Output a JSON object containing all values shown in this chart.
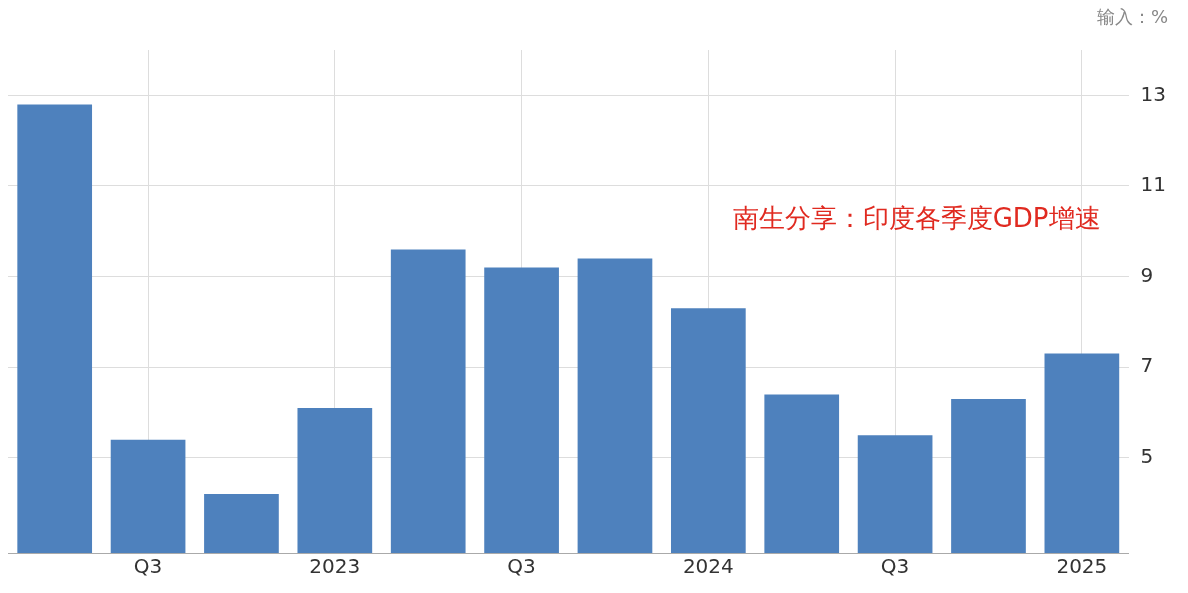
{
  "chart_data": {
    "type": "bar",
    "ylabel": "输入：%",
    "annotations": [
      "南生分享：印度各季度GDP增速"
    ],
    "categories": [
      null,
      "Q3",
      null,
      "2023",
      null,
      "Q3",
      null,
      "2024",
      null,
      "Q3",
      null,
      "2025"
    ],
    "values": [
      12.8,
      5.4,
      4.2,
      6.1,
      9.6,
      9.2,
      9.4,
      8.3,
      6.4,
      5.5,
      6.3,
      7.3
    ],
    "color": "#4e81bd",
    "ylim": [
      2.9,
      14
    ],
    "yticks": [
      5,
      7,
      9,
      11,
      13
    ],
    "grid": true
  }
}
